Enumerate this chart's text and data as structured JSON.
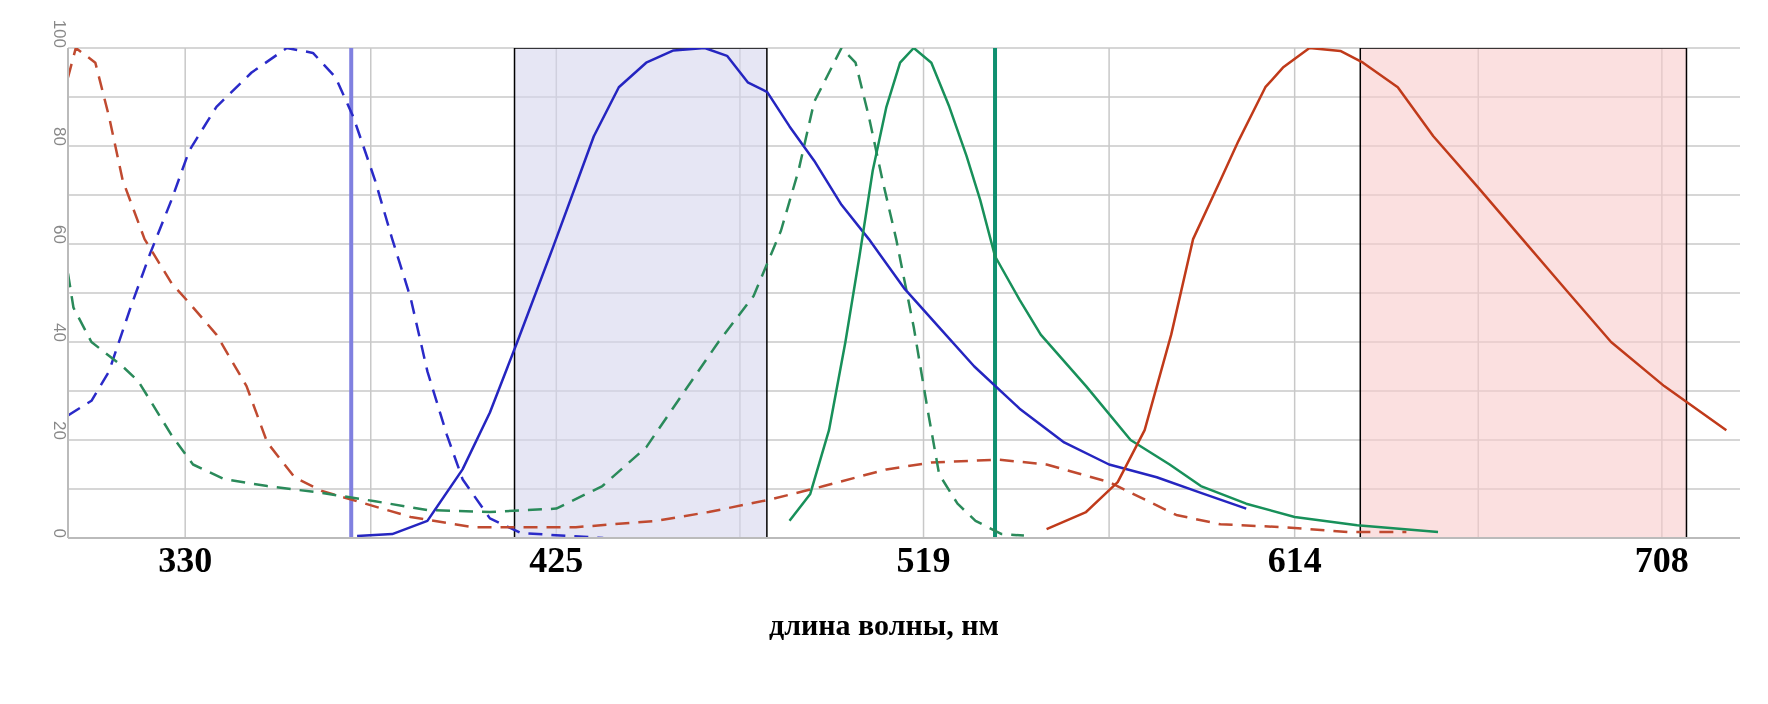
{
  "chart_data": {
    "type": "line",
    "xlabel": "длина волны, нм",
    "xlim": [
      300,
      728
    ],
    "ylim": [
      0,
      100
    ],
    "xticks": [
      330,
      {
        "value": 377.5,
        "label": null
      },
      425,
      {
        "value": 472,
        "label": null
      },
      519,
      {
        "value": 566.5,
        "label": null
      },
      614,
      {
        "value": 661,
        "label": null
      },
      708
    ],
    "yticks": [
      0,
      {
        "value": 10,
        "label": null
      },
      20,
      {
        "value": 30,
        "label": null
      },
      40,
      {
        "value": 50,
        "label": null
      },
      60,
      {
        "value": 70,
        "label": null
      },
      80,
      {
        "value": 90,
        "label": null
      },
      100
    ],
    "grid": true,
    "series": [
      {
        "color": "#2a2ac8",
        "line_style": "dashed",
        "x": [
          300,
          306,
          310.5,
          316,
          321,
          326.5,
          331,
          338,
          347,
          356,
          362.7,
          368.5,
          373,
          378.6,
          383,
          387.7,
          392,
          397,
          401,
          408,
          416,
          437
        ],
        "values": [
          25,
          28,
          34,
          47,
          58,
          69,
          79,
          88,
          95,
          100,
          99,
          94,
          86,
          73,
          61,
          49,
          34,
          21,
          12,
          4,
          1,
          0
        ]
      },
      {
        "color": "#c04a30",
        "line_style": "dashed",
        "x": [
          300,
          302,
          307,
          310.5,
          314,
          319.6,
          326.5,
          331,
          338,
          345.7,
          351,
          358,
          365,
          374,
          387.7,
          403.7,
          430,
          450.5,
          464,
          480,
          493.5,
          509.5,
          521,
          538,
          550.5,
          566.5,
          583.7,
          595,
          611,
          628,
          642.6
        ],
        "values": [
          94,
          100,
          97,
          86,
          73,
          61,
          52,
          48,
          41.5,
          31,
          19.5,
          12.4,
          9.6,
          7.5,
          4.3,
          2.2,
          2.2,
          3.5,
          5.3,
          7.9,
          10.6,
          14,
          15.4,
          16,
          15,
          11.4,
          4.7,
          2.8,
          2.2,
          1.2,
          1.2
        ]
      },
      {
        "color": "#2a8a5a",
        "line_style": "dashed",
        "x": [
          300,
          301.4,
          306,
          314,
          318,
          326.5,
          332,
          340,
          351,
          365,
          378.6,
          392,
          408,
          425,
          436.8,
          448,
          457,
          466.5,
          475.5,
          482.5,
          487,
          491,
          498,
          501.6,
          505,
          508.5,
          512,
          516.5,
          520,
          523,
          527.7,
          532.3,
          539,
          544.7
        ],
        "values": [
          54,
          47,
          40,
          35,
          32,
          21,
          15,
          12,
          10.6,
          9.2,
          7.5,
          5.7,
          5.3,
          6,
          10.6,
          18.5,
          29,
          40,
          49.4,
          62.7,
          75,
          89,
          100,
          97,
          86,
          73,
          61,
          43,
          26.4,
          13,
          7,
          3.5,
          0.8,
          0.5
        ]
      },
      {
        "color": "#2525c0",
        "line_style": "solid",
        "x": [
          374,
          383,
          392,
          401,
          408,
          415,
          424,
          430,
          434.6,
          441,
          448,
          455,
          463,
          468.7,
          474,
          479,
          484.7,
          491,
          498,
          505,
          514,
          523,
          532,
          543.6,
          555,
          566.5,
          578.7,
          590,
          601.6
        ],
        "values": [
          0.4,
          0.8,
          3.5,
          14,
          25.6,
          40,
          59,
          72,
          82,
          92,
          97,
          99.5,
          100,
          98.4,
          93,
          91,
          84,
          77,
          68,
          61,
          51,
          43,
          35,
          26.4,
          19.5,
          15,
          12.4,
          9.2,
          6
        ]
      },
      {
        "color": "#18905a",
        "line_style": "solid",
        "x": [
          484.7,
          490,
          494.8,
          499,
          502.6,
          506,
          509.5,
          513,
          516.5,
          521,
          525.6,
          530,
          533.5,
          537.3,
          543.6,
          549,
          560.6,
          572,
          582,
          590,
          601.6,
          614,
          630,
          650.7
        ],
        "values": [
          3.5,
          9,
          22,
          40,
          57.5,
          75,
          88,
          97,
          100,
          97,
          88,
          78,
          69,
          57.5,
          48.6,
          41.5,
          31,
          20,
          15,
          10.6,
          7,
          4.3,
          2.6,
          1.2
        ]
      },
      {
        "color": "#c03a1a",
        "line_style": "solid",
        "x": [
          550.5,
          560.6,
          568.7,
          575.6,
          582.4,
          588,
          595,
          599.6,
          606.5,
          611,
          617.8,
          625.7,
          631.5,
          640.4,
          649.5,
          661,
          672.3,
          683.7,
          695,
          708.6,
          724.5
        ],
        "values": [
          1.8,
          5.3,
          11.4,
          22,
          41.5,
          61,
          73,
          81,
          92,
          96,
          100,
          99.4,
          97,
          92,
          82,
          71.5,
          61,
          50.4,
          40,
          31,
          22
        ]
      }
    ],
    "ref_lines": [
      {
        "axis": "x",
        "value": 372.5,
        "color": "#8080e0"
      },
      {
        "axis": "x",
        "value": 537.3,
        "color": "#109070"
      }
    ],
    "bands": [
      {
        "axis": "x",
        "from": 414.3,
        "to": 478.9,
        "color": "#d6d6ec"
      },
      {
        "axis": "x",
        "from": 630.8,
        "to": 714.3,
        "color": "#f8cccc"
      }
    ]
  }
}
